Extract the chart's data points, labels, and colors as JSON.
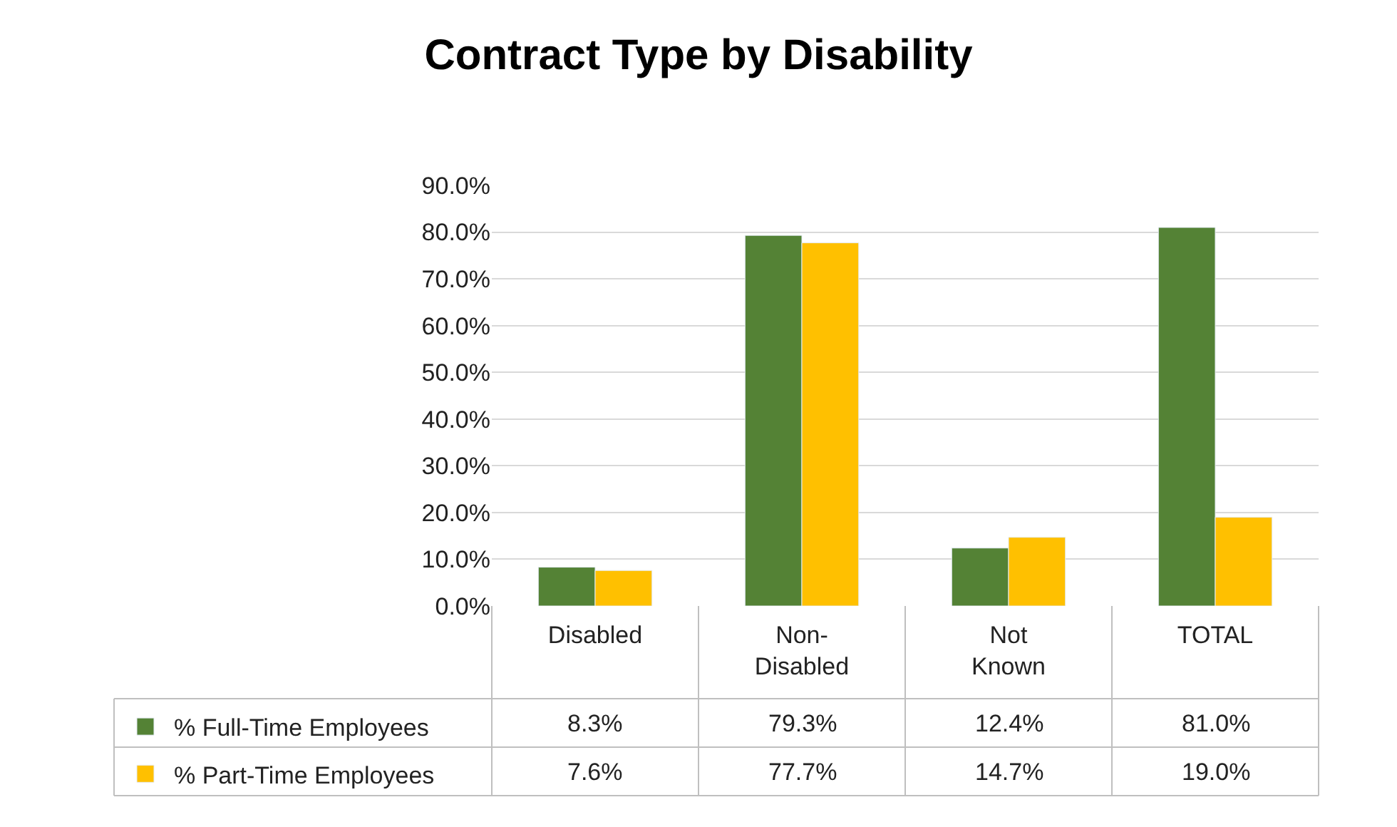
{
  "chart_data": {
    "type": "bar",
    "title": "Contract Type by Disability",
    "categories": [
      "Disabled",
      "Non-Disabled",
      "Not Known",
      "TOTAL"
    ],
    "series": [
      {
        "name": "% Full-Time Employees",
        "color": "#548235",
        "values": [
          8.3,
          79.3,
          12.4,
          81.0
        ],
        "value_labels": [
          "8.3%",
          "79.3%",
          "12.4%",
          "81.0%"
        ]
      },
      {
        "name": "% Part-Time Employees",
        "color": "#ffc000",
        "values": [
          7.6,
          77.7,
          14.7,
          19.0
        ],
        "value_labels": [
          "7.6%",
          "77.7%",
          "14.7%",
          "19.0%"
        ]
      }
    ],
    "ylim": [
      0,
      90
    ],
    "yticks": [
      {
        "value": 0,
        "label": "0.0%"
      },
      {
        "value": 10,
        "label": "10.0%"
      },
      {
        "value": 20,
        "label": "20.0%"
      },
      {
        "value": 30,
        "label": "30.0%"
      },
      {
        "value": 40,
        "label": "40.0%"
      },
      {
        "value": 50,
        "label": "50.0%"
      },
      {
        "value": 60,
        "label": "60.0%"
      },
      {
        "value": 70,
        "label": "70.0%"
      },
      {
        "value": 80,
        "label": "80.0%"
      },
      {
        "value": 90,
        "label": "90.0%"
      }
    ],
    "grid": "y",
    "legend": "bottom"
  }
}
